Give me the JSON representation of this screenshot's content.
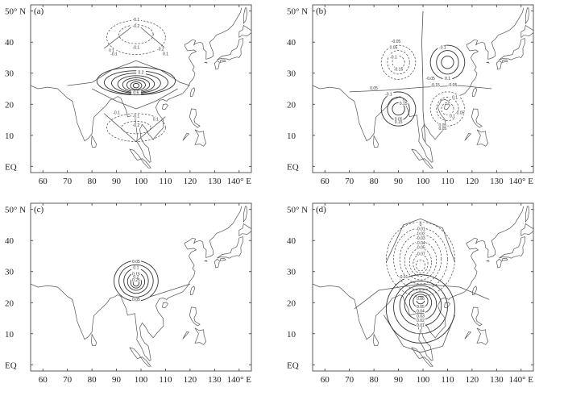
{
  "chart_data": [
    {
      "type": "contour",
      "panel_label": "(a)",
      "xticks": [
        "60",
        "70",
        "80",
        "90",
        "100",
        "110",
        "120",
        "130",
        "140° E"
      ],
      "yticks": [
        "50° N",
        "40",
        "30",
        "20",
        "10",
        "EQ"
      ],
      "xlim": [
        55,
        145
      ],
      "ylim": [
        -2,
        52
      ],
      "center": [
        98,
        26
      ],
      "contour_labels": [
        "-0.1",
        "-0.2",
        "0.1",
        "-0.1",
        "-0.2",
        "-0.1",
        "0.1",
        "0.2",
        "0.6",
        "-0.1",
        "-0.1",
        "-0.2",
        "0.1"
      ]
    },
    {
      "type": "contour",
      "panel_label": "(b)",
      "xticks": [
        "60",
        "70",
        "80",
        "90",
        "100",
        "110",
        "120",
        "130",
        "140° E"
      ],
      "yticks": [
        "50° N",
        "40",
        "30",
        "20",
        "10",
        "EQ"
      ],
      "xlim": [
        55,
        145
      ],
      "ylim": [
        -2,
        52
      ],
      "center": [
        100,
        26
      ],
      "contour_labels": [
        "-0.05",
        "0.05",
        "-0.1",
        "-0.1",
        "-0.15",
        "-0.15",
        "0.05",
        "-0.05",
        "0.15",
        "0.1",
        "0.1",
        "0.05",
        "0.15",
        "0.05",
        "-0.05",
        "-0.1",
        "0.05",
        "0.1",
        "-0.05"
      ]
    },
    {
      "type": "contour",
      "panel_label": "(c)",
      "xticks": [
        "60",
        "70",
        "80",
        "90",
        "100",
        "110",
        "120",
        "130",
        "140° E"
      ],
      "yticks": [
        "50° N",
        "40",
        "30",
        "20",
        "10",
        "EQ"
      ],
      "xlim": [
        55,
        145
      ],
      "ylim": [
        -2,
        52
      ],
      "center": [
        98,
        26
      ],
      "contour_labels": [
        "0.05",
        "0.1",
        "0.15",
        "0.2",
        "0.25",
        "0.05"
      ]
    },
    {
      "type": "contour",
      "panel_label": "(d)",
      "xticks": [
        "60",
        "70",
        "80",
        "90",
        "100",
        "110",
        "120",
        "130",
        "140° E"
      ],
      "yticks": [
        "50° N",
        "40",
        "30",
        "20",
        "10",
        "EQ"
      ],
      "xlim": [
        55,
        145
      ],
      "ylim": [
        -2,
        52
      ],
      "center": [
        99,
        26
      ],
      "contour_labels": [
        "0",
        "-0.01",
        "-0.02",
        "-0.03",
        "-0.04",
        "-0.05",
        "-0.07",
        "-0.01",
        "0.06",
        "0.05",
        "0.04",
        "0.03",
        "0.02",
        "0.01",
        "0"
      ]
    }
  ]
}
